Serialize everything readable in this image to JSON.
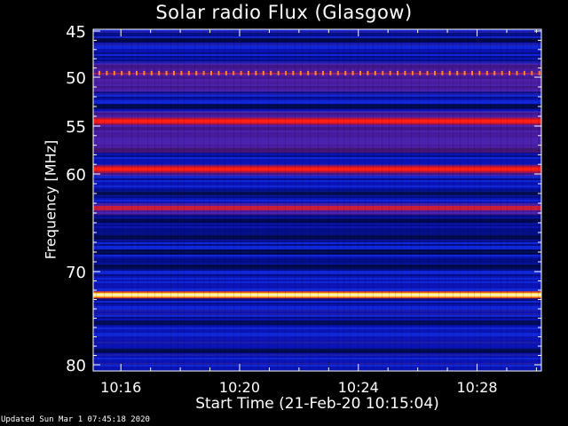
{
  "chart_data": {
    "type": "heatmap",
    "title": "Solar radio Flux (Glasgow)",
    "xlabel": "Start Time (21-Feb-20 10:15:04)",
    "ylabel": "Frequency [MHz]",
    "x_range": [
      "10:15:04",
      "10:30:10"
    ],
    "x_ticks": [
      "10:16",
      "10:20",
      "10:24",
      "10:28"
    ],
    "y_ticks": [
      45,
      50,
      55,
      60,
      70,
      80
    ],
    "colors": {
      "background": "#000000",
      "low": "#0a14b4",
      "mid": "#c81e3c",
      "high": "#fff8c8"
    },
    "bright_bands_mhz": [
      {
        "freq": 49.6,
        "level": "spiky"
      },
      {
        "freq": 54.5,
        "level": "high"
      },
      {
        "freq": 59.5,
        "level": "high"
      },
      {
        "freq": 63.5,
        "level": "mid"
      },
      {
        "freq": 72.5,
        "level": "saturated"
      }
    ],
    "dark_bands_mhz": [
      46.0,
      53.0,
      57.5,
      62.0,
      64.8,
      66.5,
      68.0,
      69.5,
      75.5,
      78.5
    ]
  },
  "footer": {
    "updated": "Updated Sun Mar  1 07:45:18 2020"
  }
}
